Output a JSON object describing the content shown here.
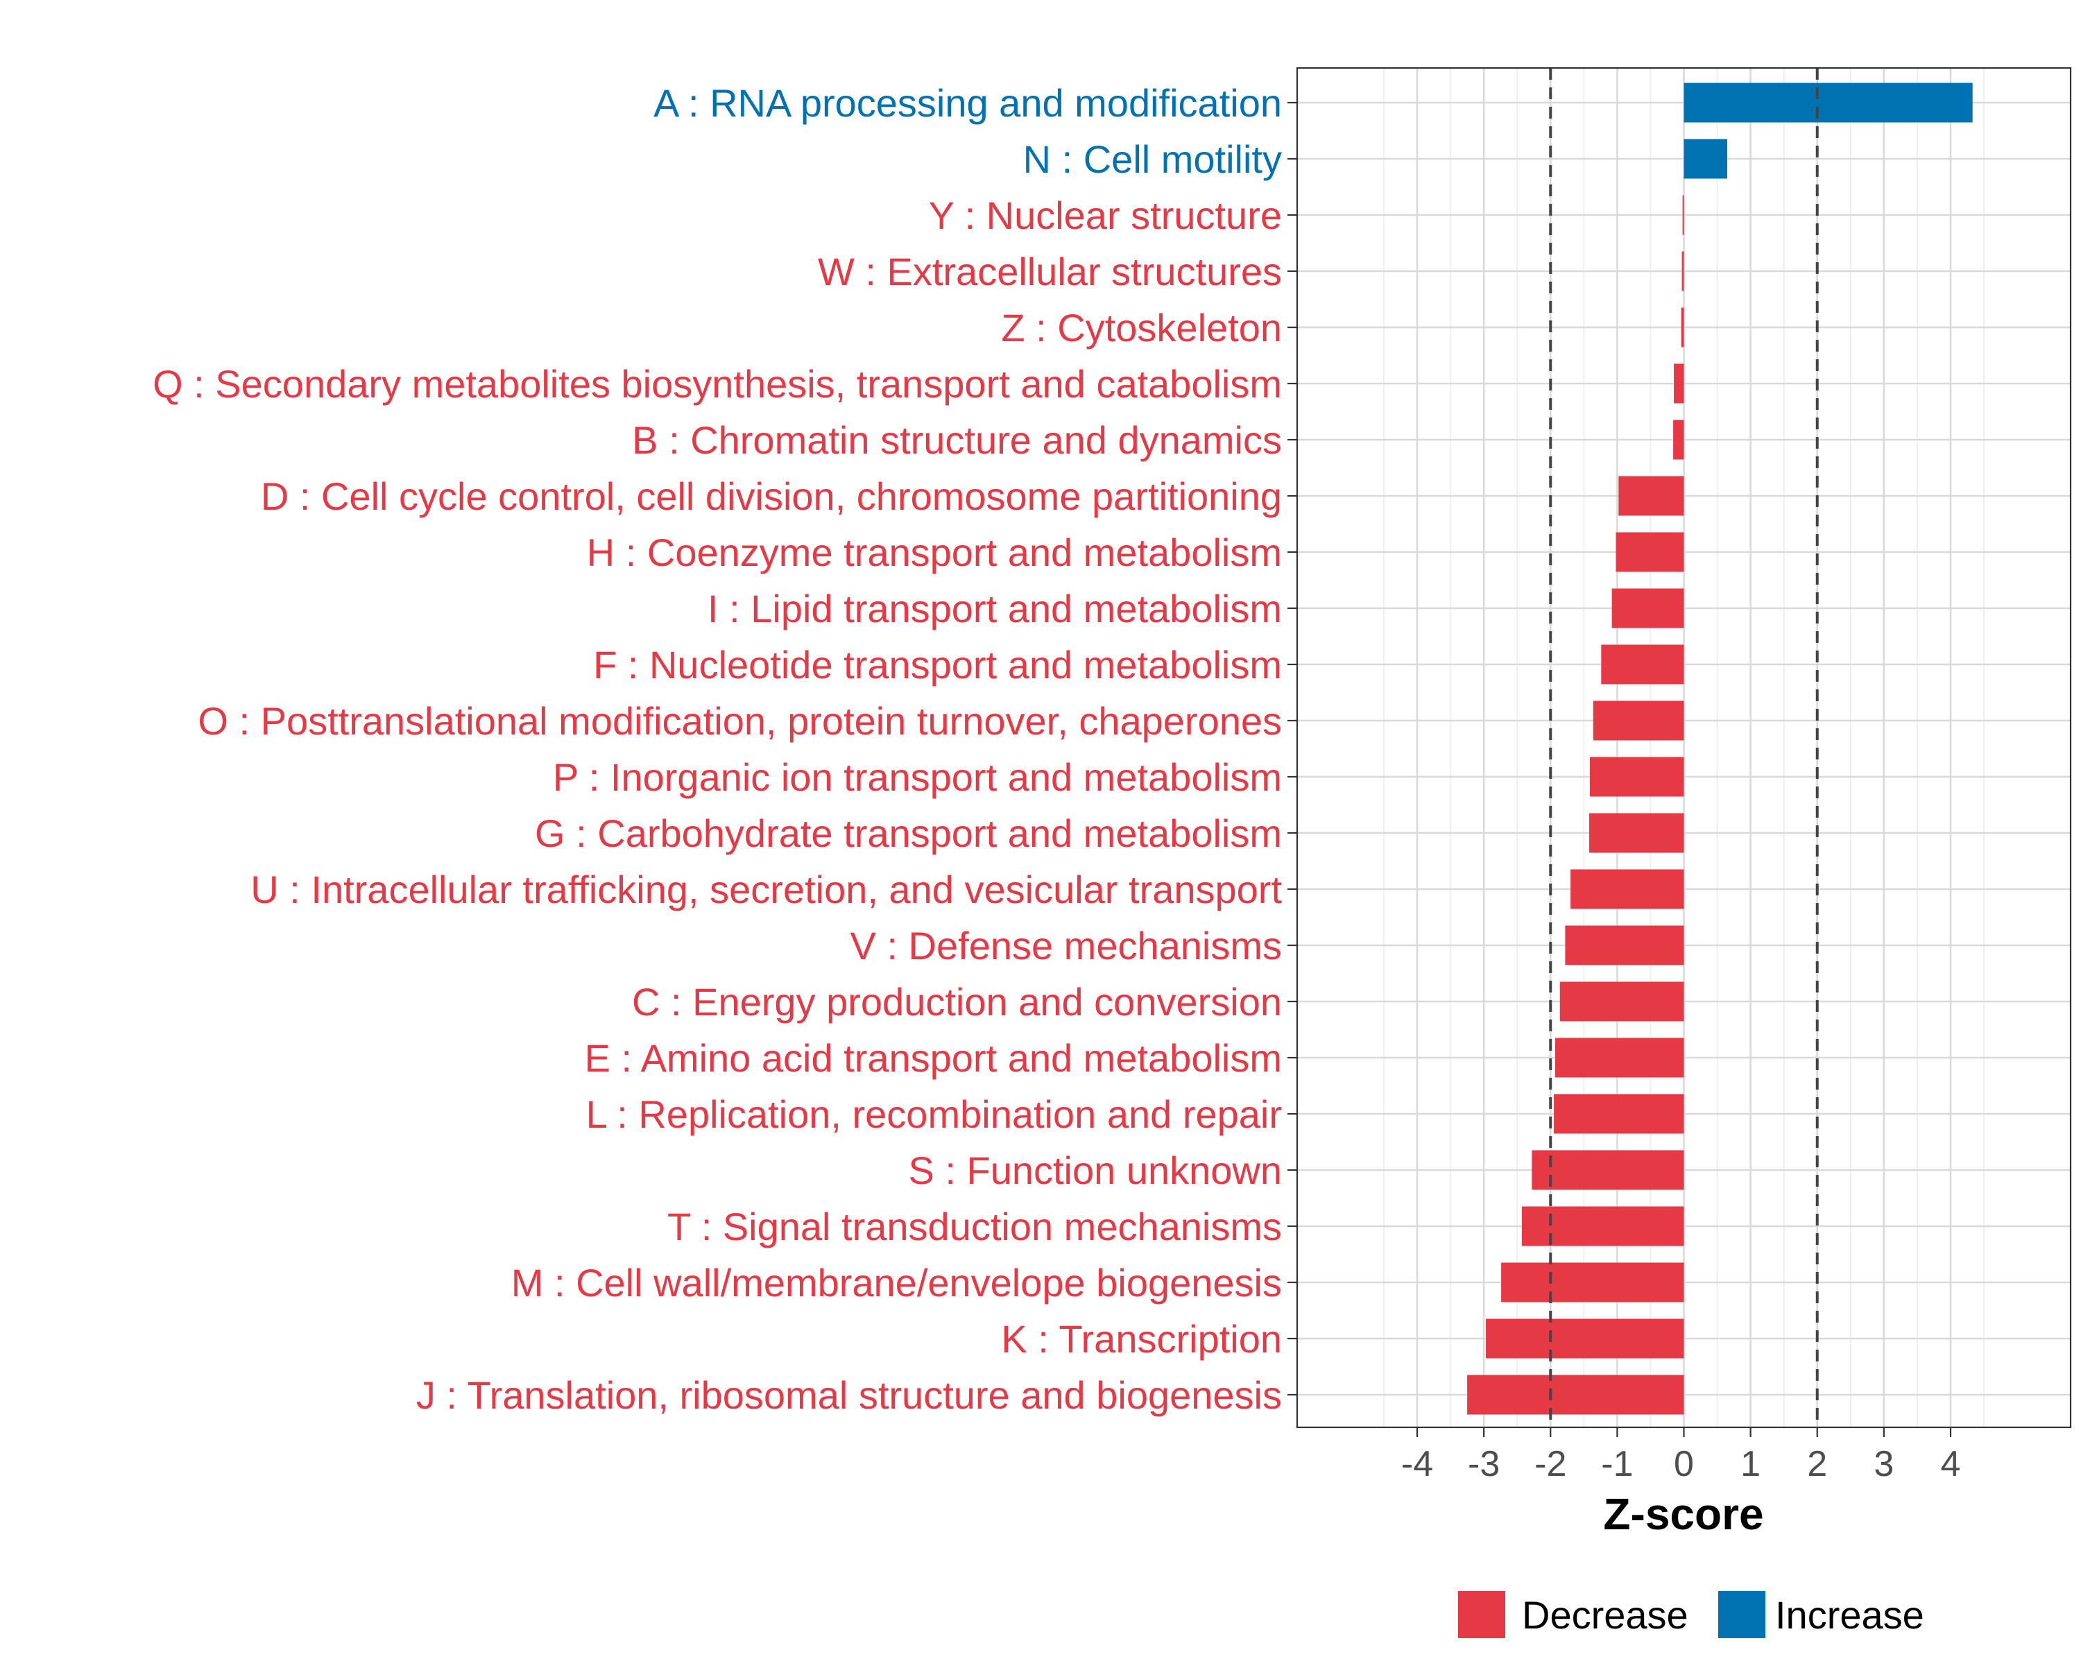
{
  "chart_data": {
    "type": "bar",
    "orientation": "horizontal",
    "xlabel": "Z-score",
    "ylabel": "",
    "xlim": [
      -5.8,
      5.8
    ],
    "xticks": [
      -4,
      -3,
      -2,
      -1,
      0,
      1,
      2,
      3,
      4
    ],
    "reference_lines": [
      -2,
      2
    ],
    "grid": true,
    "legend_position": "bottom",
    "colors": {
      "Decrease": "#E63946",
      "Increase": "#0072B2"
    },
    "legend": [
      {
        "label": "Decrease",
        "color": "#E63946"
      },
      {
        "label": "Increase",
        "color": "#0072B2"
      }
    ],
    "categories": [
      "A : RNA processing and modification",
      "N : Cell motility",
      "Y : Nuclear structure",
      "W : Extracellular structures",
      "Z : Cytoskeleton",
      "Q : Secondary metabolites biosynthesis, transport and catabolism",
      "B : Chromatin structure and dynamics",
      "D : Cell cycle control, cell division, chromosome partitioning",
      "H : Coenzyme transport and metabolism",
      "I : Lipid transport and metabolism",
      "F : Nucleotide transport and metabolism",
      "O : Posttranslational modification, protein turnover, chaperones",
      "P : Inorganic ion transport and metabolism",
      "G : Carbohydrate transport and metabolism",
      "U : Intracellular trafficking, secretion, and vesicular transport",
      "V : Defense mechanisms",
      "C : Energy production and conversion",
      "E : Amino acid transport and metabolism",
      "L : Replication, recombination and repair",
      "S : Function unknown",
      "T : Signal transduction mechanisms",
      "M : Cell wall/membrane/envelope biogenesis",
      "K : Transcription",
      "J : Translation, ribosomal structure and biogenesis"
    ],
    "values": [
      4.33,
      0.65,
      -0.02,
      -0.03,
      -0.04,
      -0.15,
      -0.16,
      -0.98,
      -1.02,
      -1.08,
      -1.24,
      -1.36,
      -1.41,
      -1.42,
      -1.7,
      -1.78,
      -1.86,
      -1.93,
      -1.95,
      -2.28,
      -2.43,
      -2.74,
      -2.97,
      -3.25
    ],
    "groups": [
      "Increase",
      "Increase",
      "Decrease",
      "Decrease",
      "Decrease",
      "Decrease",
      "Decrease",
      "Decrease",
      "Decrease",
      "Decrease",
      "Decrease",
      "Decrease",
      "Decrease",
      "Decrease",
      "Decrease",
      "Decrease",
      "Decrease",
      "Decrease",
      "Decrease",
      "Decrease",
      "Decrease",
      "Decrease",
      "Decrease",
      "Decrease"
    ]
  }
}
